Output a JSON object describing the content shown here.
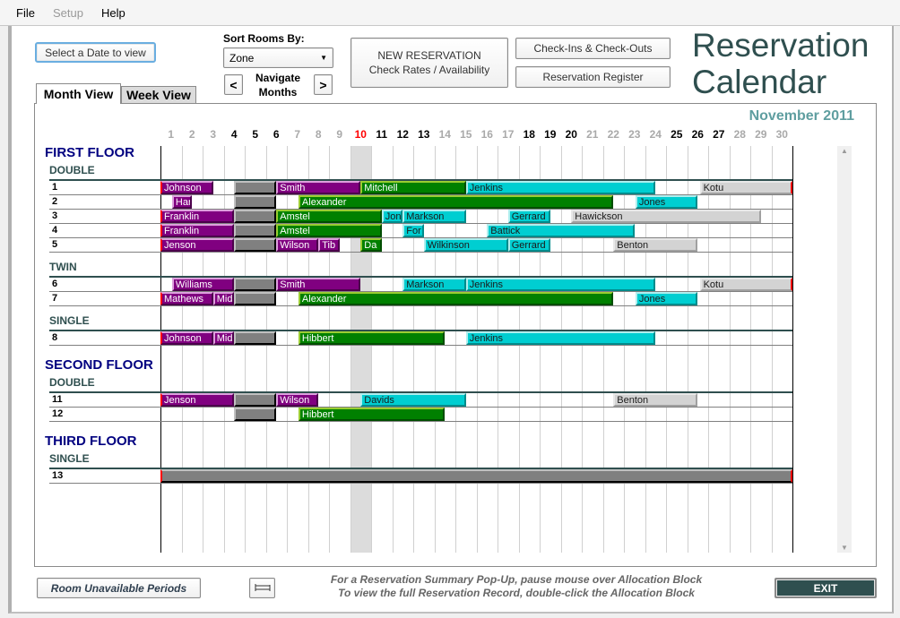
{
  "menu": [
    "File",
    "Setup",
    "Help"
  ],
  "toolbar": {
    "select_date": "Select a Date to view",
    "sort_label": "Sort Rooms By:",
    "sort_value": "Zone",
    "prev": "<",
    "next": ">",
    "navigate_line1": "Navigate",
    "navigate_line2": "Months",
    "new_res_line1": "NEW RESERVATION",
    "new_res_line2": "Check Rates / Availability",
    "checkins": "Check-Ins & Check-Outs",
    "register": "Reservation Register",
    "title_line1": "Reservation",
    "title_line2": "Calendar"
  },
  "tabs": [
    "Month View",
    "Week View"
  ],
  "month": "November 2011",
  "today": 10,
  "days": [
    {
      "d": "1",
      "kind": "past"
    },
    {
      "d": "2",
      "kind": "past"
    },
    {
      "d": "3",
      "kind": "past"
    },
    {
      "d": "4",
      "kind": "bold"
    },
    {
      "d": "5",
      "kind": "bold"
    },
    {
      "d": "6",
      "kind": "bold"
    },
    {
      "d": "7",
      "kind": "past"
    },
    {
      "d": "8",
      "kind": "past"
    },
    {
      "d": "9",
      "kind": "past"
    },
    {
      "d": "10",
      "kind": "today"
    },
    {
      "d": "11",
      "kind": "bold"
    },
    {
      "d": "12",
      "kind": "bold"
    },
    {
      "d": "13",
      "kind": "bold"
    },
    {
      "d": "14",
      "kind": "past"
    },
    {
      "d": "15",
      "kind": "past"
    },
    {
      "d": "16",
      "kind": "past"
    },
    {
      "d": "17",
      "kind": "past"
    },
    {
      "d": "18",
      "kind": "bold"
    },
    {
      "d": "19",
      "kind": "bold"
    },
    {
      "d": "20",
      "kind": "bold"
    },
    {
      "d": "21",
      "kind": "past"
    },
    {
      "d": "22",
      "kind": "past"
    },
    {
      "d": "23",
      "kind": "past"
    },
    {
      "d": "24",
      "kind": "past"
    },
    {
      "d": "25",
      "kind": "bold"
    },
    {
      "d": "26",
      "kind": "bold"
    },
    {
      "d": "27",
      "kind": "bold"
    },
    {
      "d": "28",
      "kind": "past"
    },
    {
      "d": "29",
      "kind": "past"
    },
    {
      "d": "30",
      "kind": "past"
    }
  ],
  "colors": {
    "purple": {
      "bg": "#800080",
      "light": "#dda0dd",
      "dark": "#4b004b",
      "text": "#ffffff"
    },
    "green": {
      "bg": "#008000",
      "light": "#9acd32",
      "dark": "#004d00",
      "text": "#ffffff"
    },
    "cyan": {
      "bg": "#00ced1",
      "light": "#afeeee",
      "dark": "#008b8b",
      "text": "#1a1a1a"
    },
    "lgray": {
      "bg": "#d3d3d3",
      "light": "#e8e8e8",
      "dark": "#a0a0a0",
      "text": "#1a1a1a"
    },
    "unavail": {
      "bg": "#808080",
      "light": "#c0c0c0",
      "dark": "#000000",
      "text": "#ffffff"
    },
    "day_past": "#a9a9a9",
    "day_bold": "#000000",
    "day_today": "#ff0000"
  },
  "floors": [
    {
      "name": "FIRST FLOOR",
      "types": [
        {
          "type": "DOUBLE",
          "rooms": [
            {
              "number": "1",
              "bookings": [
                {
                  "guest": "Johnson",
                  "start": 1,
                  "end": 3.5,
                  "color": "purple"
                },
                {
                  "guest": "",
                  "start": 4.5,
                  "end": 6.5,
                  "color": "unavail"
                },
                {
                  "guest": "Smith",
                  "start": 6.5,
                  "end": 10.5,
                  "color": "purple"
                },
                {
                  "guest": "Mitchell",
                  "start": 10.5,
                  "end": 15.5,
                  "color": "green"
                },
                {
                  "guest": "Jenkins",
                  "start": 15.5,
                  "end": 24.5,
                  "color": "cyan"
                },
                {
                  "guest": "Kotu",
                  "start": 26.6,
                  "end": 31,
                  "color": "lgray"
                }
              ]
            },
            {
              "number": "2",
              "bookings": [
                {
                  "guest": "Har",
                  "start": 1.55,
                  "end": 2.5,
                  "color": "purple"
                },
                {
                  "guest": "",
                  "start": 4.5,
                  "end": 6.5,
                  "color": "unavail"
                },
                {
                  "guest": "Alexander",
                  "start": 7.55,
                  "end": 22.5,
                  "color": "green"
                },
                {
                  "guest": "Jones",
                  "start": 23.55,
                  "end": 26.5,
                  "color": "cyan"
                }
              ]
            },
            {
              "number": "3",
              "bookings": [
                {
                  "guest": "Franklin",
                  "start": 1,
                  "end": 4.5,
                  "color": "purple"
                },
                {
                  "guest": "",
                  "start": 4.5,
                  "end": 6.5,
                  "color": "unavail"
                },
                {
                  "guest": "Amstel",
                  "start": 6.5,
                  "end": 11.5,
                  "color": "green"
                },
                {
                  "guest": "Jon",
                  "start": 11.5,
                  "end": 12.5,
                  "color": "cyan"
                },
                {
                  "guest": "Markson",
                  "start": 12.5,
                  "end": 15.5,
                  "color": "cyan"
                },
                {
                  "guest": "Gerrard",
                  "start": 17.5,
                  "end": 19.5,
                  "color": "cyan"
                },
                {
                  "guest": "Hawickson",
                  "start": 20.5,
                  "end": 29.5,
                  "color": "lgray"
                }
              ]
            },
            {
              "number": "4",
              "bookings": [
                {
                  "guest": "Franklin",
                  "start": 1,
                  "end": 4.5,
                  "color": "purple"
                },
                {
                  "guest": "",
                  "start": 4.5,
                  "end": 6.5,
                  "color": "unavail"
                },
                {
                  "guest": "Amstel",
                  "start": 6.5,
                  "end": 11.5,
                  "color": "green"
                },
                {
                  "guest": "For",
                  "start": 12.5,
                  "end": 13.5,
                  "color": "cyan"
                },
                {
                  "guest": "Battick",
                  "start": 16.5,
                  "end": 23.5,
                  "color": "cyan"
                }
              ]
            },
            {
              "number": "5",
              "bookings": [
                {
                  "guest": "Jenson",
                  "start": 1,
                  "end": 4.5,
                  "color": "purple"
                },
                {
                  "guest": "",
                  "start": 4.5,
                  "end": 6.5,
                  "color": "unavail"
                },
                {
                  "guest": "Wilson",
                  "start": 6.5,
                  "end": 8.5,
                  "color": "purple"
                },
                {
                  "guest": "Tib",
                  "start": 8.5,
                  "end": 9.5,
                  "color": "purple"
                },
                {
                  "guest": "Da",
                  "start": 10.5,
                  "end": 11.5,
                  "color": "green"
                },
                {
                  "guest": "Wilkinson",
                  "start": 13.5,
                  "end": 17.5,
                  "color": "cyan"
                },
                {
                  "guest": "Gerrard",
                  "start": 17.5,
                  "end": 19.5,
                  "color": "cyan"
                },
                {
                  "guest": "Benton",
                  "start": 22.5,
                  "end": 26.5,
                  "color": "lgray"
                }
              ]
            }
          ]
        },
        {
          "type": "TWIN",
          "rooms": [
            {
              "number": "6",
              "bookings": [
                {
                  "guest": "Williams",
                  "start": 1.55,
                  "end": 4.5,
                  "color": "purple"
                },
                {
                  "guest": "",
                  "start": 4.5,
                  "end": 6.5,
                  "color": "unavail"
                },
                {
                  "guest": "Smith",
                  "start": 6.5,
                  "end": 10.5,
                  "color": "purple"
                },
                {
                  "guest": "Markson",
                  "start": 12.5,
                  "end": 15.5,
                  "color": "cyan"
                },
                {
                  "guest": "Jenkins",
                  "start": 15.5,
                  "end": 24.5,
                  "color": "cyan"
                },
                {
                  "guest": "Kotu",
                  "start": 26.6,
                  "end": 31,
                  "color": "lgray"
                }
              ]
            },
            {
              "number": "7",
              "bookings": [
                {
                  "guest": "Mathews",
                  "start": 1,
                  "end": 3.5,
                  "color": "purple"
                },
                {
                  "guest": "Mid",
                  "start": 3.5,
                  "end": 4.5,
                  "color": "purple"
                },
                {
                  "guest": "",
                  "start": 4.5,
                  "end": 6.5,
                  "color": "unavail"
                },
                {
                  "guest": "Alexander",
                  "start": 7.55,
                  "end": 22.5,
                  "color": "green"
                },
                {
                  "guest": "Jones",
                  "start": 23.55,
                  "end": 26.5,
                  "color": "cyan"
                }
              ]
            }
          ]
        },
        {
          "type": "SINGLE",
          "rooms": [
            {
              "number": "8",
              "bookings": [
                {
                  "guest": "Johnson",
                  "start": 1,
                  "end": 3.5,
                  "color": "purple"
                },
                {
                  "guest": "Mid",
                  "start": 3.5,
                  "end": 4.5,
                  "color": "purple"
                },
                {
                  "guest": "",
                  "start": 4.5,
                  "end": 6.5,
                  "color": "unavail"
                },
                {
                  "guest": "Hibbert",
                  "start": 7.55,
                  "end": 14.5,
                  "color": "green"
                },
                {
                  "guest": "Jenkins",
                  "start": 15.5,
                  "end": 24.5,
                  "color": "cyan"
                }
              ]
            }
          ]
        }
      ]
    },
    {
      "name": "SECOND FLOOR",
      "types": [
        {
          "type": "DOUBLE",
          "rooms": [
            {
              "number": "11",
              "bookings": [
                {
                  "guest": "Jenson",
                  "start": 1,
                  "end": 4.5,
                  "color": "purple"
                },
                {
                  "guest": "",
                  "start": 4.5,
                  "end": 6.5,
                  "color": "unavail"
                },
                {
                  "guest": "Wilson",
                  "start": 6.5,
                  "end": 8.5,
                  "color": "purple"
                },
                {
                  "guest": "Davids",
                  "start": 10.5,
                  "end": 15.5,
                  "color": "cyan"
                },
                {
                  "guest": "Benton",
                  "start": 22.5,
                  "end": 26.5,
                  "color": "lgray"
                }
              ]
            },
            {
              "number": "12",
              "bookings": [
                {
                  "guest": "",
                  "start": 4.5,
                  "end": 6.5,
                  "color": "unavail"
                },
                {
                  "guest": "Hibbert",
                  "start": 7.55,
                  "end": 14.5,
                  "color": "green"
                }
              ]
            }
          ]
        }
      ]
    },
    {
      "name": "THIRD FLOOR",
      "types": [
        {
          "type": "SINGLE",
          "rooms": [
            {
              "number": "13",
              "bookings": [
                {
                  "guest": "",
                  "start": 1,
                  "end": 31,
                  "color": "unavail"
                }
              ]
            }
          ]
        }
      ]
    }
  ],
  "footer": {
    "unavailable": "Room Unavailable Periods",
    "hint1": "For a Reservation Summary Pop-Up, pause mouse over Allocation Block",
    "hint2": "To view the full Reservation Record, double-click the Allocation Block",
    "exit": "EXIT"
  }
}
